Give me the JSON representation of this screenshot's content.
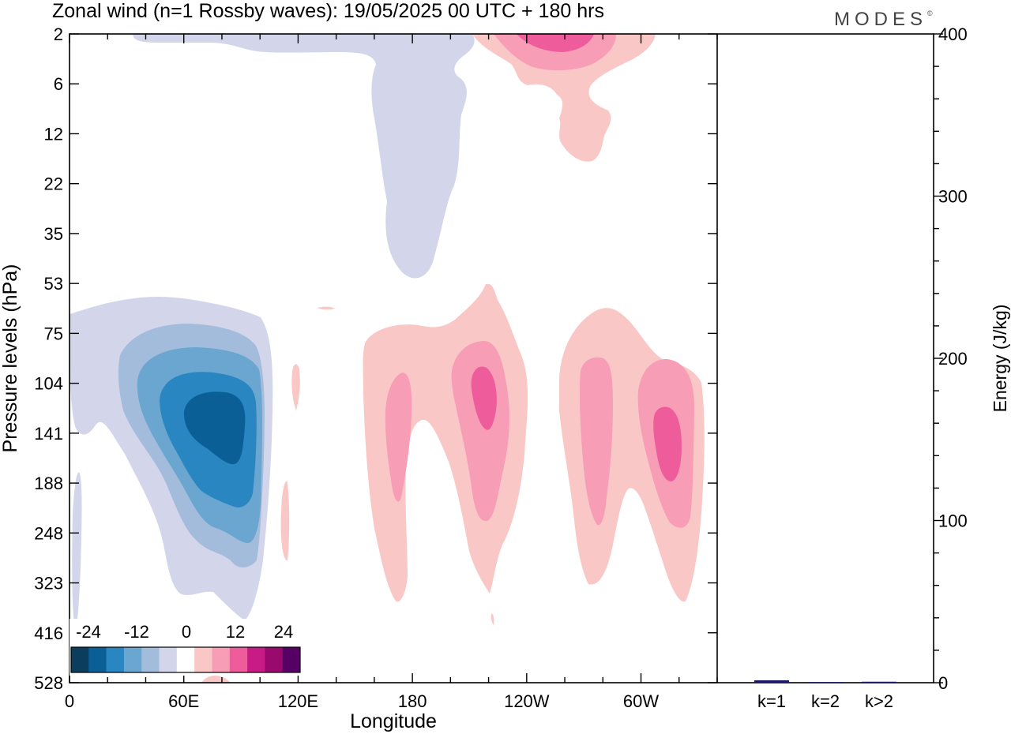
{
  "title": "Zonal wind (n=1 Rossby waves):  19/05/2025  00 UTC  + 180 hrs",
  "brand": "MODES",
  "brand_mark": "©",
  "chart_data": [
    {
      "type": "heatmap",
      "title": "Zonal wind (n=1 Rossby waves):  19/05/2025  00 UTC  + 180 hrs",
      "xlabel": "Longitude",
      "ylabel": "Pressure levels (hPa)",
      "x_ticks": [
        "0",
        "60E",
        "120E",
        "180",
        "120W",
        "60W"
      ],
      "x_range_deg": [
        0,
        340
      ],
      "y_ticks": [
        "2",
        "6",
        "12",
        "22",
        "35",
        "53",
        "75",
        "104",
        "141",
        "188",
        "248",
        "323",
        "416",
        "528"
      ],
      "colorbar": {
        "labels": [
          "-24",
          "-12",
          "0",
          "12",
          "24"
        ],
        "colors": [
          "#0b3d5c",
          "#0a6096",
          "#2a86c0",
          "#6aa6cf",
          "#a3bcdc",
          "#d3d6ea",
          "#ffffff",
          "#f9c8c6",
          "#f79db5",
          "#ef5c9c",
          "#c91b85",
          "#9a0a6e",
          "#560066"
        ]
      },
      "features": [
        {
          "sign": "negative",
          "min_level": -24,
          "center_lon": 72,
          "center_hPa": 141
        },
        {
          "sign": "negative",
          "min_level": -6,
          "center_lon": 180,
          "center_hPa": 12
        },
        {
          "sign": "positive",
          "max_level": 8,
          "center_lon": 183,
          "center_hPa": 141
        },
        {
          "sign": "positive",
          "max_level": 12,
          "center_lon": 218,
          "center_hPa": 118
        },
        {
          "sign": "positive",
          "max_level": 8,
          "center_lon": 280,
          "center_hPa": 141
        },
        {
          "sign": "positive",
          "max_level": 12,
          "center_lon": 313,
          "center_hPa": 155
        },
        {
          "sign": "positive",
          "max_level": 16,
          "center_lon": 257,
          "center_hPa": 2
        }
      ]
    },
    {
      "type": "bar",
      "categories": [
        "k=1",
        "k=2",
        "k>2"
      ],
      "values": [
        1.5,
        0.4,
        0.6
      ],
      "ylabel": "Energy (J/kg)",
      "ylim": [
        0,
        400
      ],
      "y_ticks": [
        0,
        100,
        200,
        300,
        400
      ],
      "bar_color": "#1a1a66"
    }
  ]
}
